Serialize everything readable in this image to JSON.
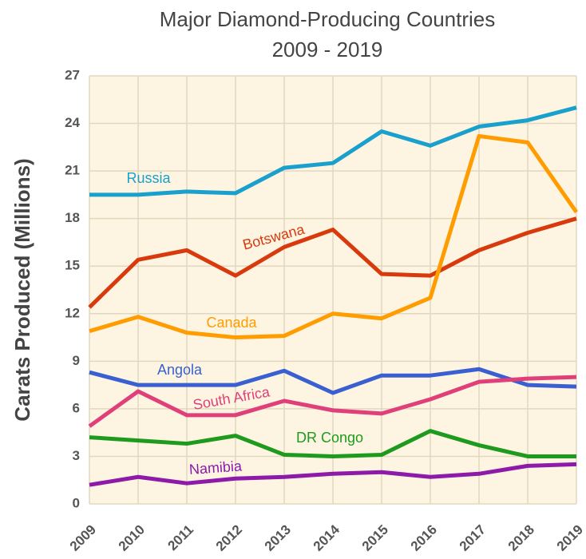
{
  "chart_data": {
    "type": "line",
    "title": [
      "Major Diamond-Producing Countries",
      "2009 - 2019"
    ],
    "y_label": "Carats Produced (Millions)",
    "x": [
      2009,
      2010,
      2011,
      2012,
      2013,
      2014,
      2015,
      2016,
      2017,
      2018,
      2019
    ],
    "xlim": [
      2009,
      2019
    ],
    "xticks": [
      2009,
      2010,
      2011,
      2012,
      2013,
      2014,
      2015,
      2016,
      2017,
      2018,
      2019
    ],
    "ylim": [
      0,
      27
    ],
    "yticks": [
      0,
      3,
      6,
      9,
      12,
      15,
      18,
      21,
      24,
      27
    ],
    "grid": true,
    "series": [
      {
        "name": "Russia",
        "color": "#1aa0cc",
        "values": [
          19.5,
          19.5,
          19.7,
          19.6,
          21.2,
          21.5,
          23.5,
          22.6,
          23.8,
          24.2,
          25.0
        ]
      },
      {
        "name": "Botswana",
        "color": "#d83a0e",
        "values": [
          12.4,
          15.4,
          16.0,
          14.4,
          16.2,
          17.3,
          14.5,
          14.4,
          16.0,
          17.1,
          18.0
        ]
      },
      {
        "name": "Canada",
        "color": "#ff9c00",
        "values": [
          10.9,
          11.8,
          10.8,
          10.5,
          10.6,
          12.0,
          11.7,
          13.0,
          23.2,
          22.8,
          18.4
        ]
      },
      {
        "name": "Angola",
        "color": "#3a5fd0",
        "values": [
          8.3,
          7.5,
          7.5,
          7.5,
          8.4,
          7.0,
          8.1,
          8.1,
          8.5,
          7.5,
          7.4
        ]
      },
      {
        "name": "South Africa",
        "color": "#e0407a",
        "values": [
          4.9,
          7.1,
          5.6,
          5.6,
          6.5,
          5.9,
          5.7,
          6.6,
          7.7,
          7.9,
          8.0
        ]
      },
      {
        "name": "DR Congo",
        "color": "#1e9a1e",
        "values": [
          4.2,
          4.0,
          3.8,
          4.3,
          3.1,
          3.0,
          3.1,
          4.6,
          3.7,
          3.0,
          3.0
        ]
      },
      {
        "name": "Namibia",
        "color": "#8e1aa8",
        "values": [
          1.2,
          1.7,
          1.3,
          1.6,
          1.7,
          1.9,
          2.0,
          1.7,
          1.9,
          2.4,
          2.5
        ]
      }
    ]
  }
}
